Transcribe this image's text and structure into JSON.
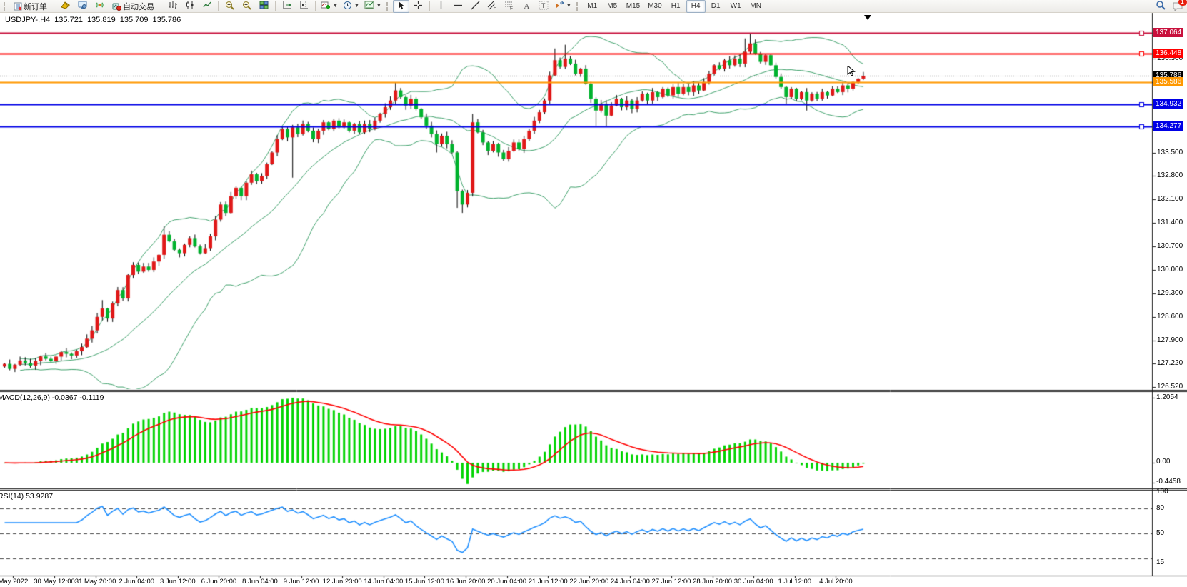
{
  "toolbar": {
    "new_order_label": "新订单",
    "autotrading_label": "自动交易",
    "timeframes": [
      "M1",
      "M5",
      "M15",
      "M30",
      "H1",
      "H4",
      "D1",
      "W1",
      "MN"
    ],
    "active_timeframe": "H4",
    "notification_count": "1"
  },
  "chart_header": {
    "symbol_period": "USDJPY-,H4",
    "open": "135.721",
    "high": "135.819",
    "low": "135.709",
    "close": "135.786"
  },
  "price_axis": {
    "ticks": [
      "137.000",
      "136.300",
      "135.600",
      "134.900",
      "134.200",
      "133.500",
      "132.800",
      "132.100",
      "131.400",
      "130.700",
      "130.000",
      "129.300",
      "128.600",
      "127.900",
      "127.220",
      "126.520"
    ],
    "levels": [
      {
        "text": "137.064",
        "value": 137.064,
        "color": "#c8103c",
        "marker": true,
        "kind": "line"
      },
      {
        "text": "136.448",
        "value": 136.448,
        "color": "#ff0000",
        "marker": true,
        "kind": "line"
      },
      {
        "text": "135.786",
        "value": 135.786,
        "color": "#000000",
        "marker": false,
        "kind": "bid"
      },
      {
        "text": "135.586",
        "value": 135.586,
        "color": "#ff9800",
        "marker": false,
        "kind": "line"
      },
      {
        "text": "134.932",
        "value": 134.932,
        "color": "#0000e6",
        "marker": true,
        "kind": "line"
      },
      {
        "text": "134.277",
        "value": 134.277,
        "color": "#0000e6",
        "marker": true,
        "kind": "line"
      }
    ]
  },
  "macd": {
    "label": "MACD(12,26,9) -0.0367 -0.1119",
    "axis_labels": [
      "1.2054",
      "0.00",
      "-0.4458"
    ]
  },
  "rsi": {
    "label": "RSI(14) 53.9287",
    "axis_labels": [
      "100",
      "80",
      "50",
      "15"
    ],
    "dashed_levels": [
      80,
      50,
      20
    ]
  },
  "time_axis": {
    "labels": [
      "May 2022",
      "30 May 12:00",
      "31 May 20:00",
      "2 Jun 04:00",
      "3 Jun 12:00",
      "6 Jun 20:00",
      "8 Jun 04:00",
      "9 Jun 12:00",
      "12 Jun 23:00",
      "14 Jun 04:00",
      "15 Jun 12:00",
      "16 Jun 20:00",
      "20 Jun 04:00",
      "21 Jun 12:00",
      "22 Jun 20:00",
      "24 Jun 04:00",
      "27 Jun 12:00",
      "28 Jun 20:00",
      "30 Jun 04:00",
      "1 Jul 12:00",
      "4 Jul 20:00"
    ]
  },
  "colors": {
    "bull_candle": "#e01818",
    "bear_candle": "#00b22d",
    "wick": "#000000",
    "bollinger": "#3fa26c",
    "macd_histogram": "#00d400",
    "macd_signal": "#ff0000",
    "rsi_line": "#1e8fff",
    "axis_line": "#000000"
  },
  "chart_data": {
    "type": "candlestick",
    "symbol": "USDJPY-",
    "timeframe": "H4",
    "bars": 168,
    "last_ohlc": {
      "open": 135.721,
      "high": 135.819,
      "low": 135.709,
      "close": 135.786
    },
    "indicators": [
      "Bollinger Bands",
      "MACD(12,26,9)",
      "RSI(14)"
    ],
    "bollinger": {
      "period": 20,
      "deviation": 2
    },
    "price_anchors": [
      [
        0,
        127.2
      ],
      [
        1,
        127.05
      ],
      [
        3,
        127.3
      ],
      [
        5,
        127.15
      ],
      [
        7,
        127.42
      ],
      [
        9,
        127.28
      ],
      [
        11,
        127.55
      ],
      [
        13,
        127.45
      ],
      [
        15,
        127.7
      ],
      [
        16,
        127.95
      ],
      [
        17,
        128.2
      ],
      [
        18,
        128.6
      ],
      [
        19,
        128.85
      ],
      [
        20,
        128.55
      ],
      [
        21,
        129.0
      ],
      [
        22,
        129.4
      ],
      [
        23,
        129.15
      ],
      [
        24,
        129.85
      ],
      [
        25,
        130.15
      ],
      [
        26,
        129.95
      ],
      [
        27,
        130.1
      ],
      [
        28,
        130.0
      ],
      [
        29,
        130.25
      ],
      [
        30,
        130.45
      ],
      [
        31,
        131.05
      ],
      [
        32,
        130.85
      ],
      [
        33,
        130.6
      ],
      [
        34,
        130.5
      ],
      [
        35,
        130.75
      ],
      [
        36,
        130.95
      ],
      [
        37,
        130.7
      ],
      [
        38,
        130.5
      ],
      [
        39,
        130.65
      ],
      [
        40,
        131.0
      ],
      [
        41,
        131.5
      ],
      [
        42,
        131.95
      ],
      [
        43,
        131.7
      ],
      [
        44,
        132.2
      ],
      [
        45,
        132.45
      ],
      [
        46,
        132.2
      ],
      [
        47,
        132.6
      ],
      [
        48,
        132.85
      ],
      [
        49,
        132.65
      ],
      [
        50,
        132.8
      ],
      [
        51,
        133.15
      ],
      [
        52,
        133.5
      ],
      [
        53,
        133.9
      ],
      [
        54,
        134.2
      ],
      [
        55,
        133.95
      ],
      [
        56,
        134.25
      ],
      [
        57,
        134.05
      ],
      [
        58,
        134.35
      ],
      [
        59,
        134.15
      ],
      [
        60,
        133.9
      ],
      [
        61,
        134.15
      ],
      [
        62,
        134.4
      ],
      [
        63,
        134.2
      ],
      [
        64,
        134.45
      ],
      [
        65,
        134.25
      ],
      [
        66,
        134.4
      ],
      [
        67,
        134.15
      ],
      [
        68,
        134.35
      ],
      [
        69,
        134.1
      ],
      [
        70,
        134.35
      ],
      [
        71,
        134.2
      ],
      [
        72,
        134.45
      ],
      [
        73,
        134.65
      ],
      [
        74,
        134.85
      ],
      [
        75,
        135.05
      ],
      [
        76,
        135.35
      ],
      [
        77,
        135.15
      ],
      [
        78,
        134.9
      ],
      [
        79,
        135.1
      ],
      [
        80,
        134.8
      ],
      [
        81,
        134.55
      ],
      [
        82,
        134.3
      ],
      [
        83,
        134.05
      ],
      [
        84,
        133.75
      ],
      [
        85,
        134.0
      ],
      [
        86,
        133.75
      ],
      [
        87,
        133.5
      ],
      [
        88,
        132.35
      ],
      [
        89,
        131.95
      ],
      [
        90,
        132.3
      ],
      [
        91,
        134.4
      ],
      [
        92,
        134.1
      ],
      [
        93,
        133.8
      ],
      [
        94,
        133.55
      ],
      [
        95,
        133.75
      ],
      [
        96,
        133.5
      ],
      [
        97,
        133.3
      ],
      [
        98,
        133.55
      ],
      [
        99,
        133.8
      ],
      [
        100,
        133.6
      ],
      [
        101,
        133.9
      ],
      [
        102,
        134.15
      ],
      [
        103,
        134.45
      ],
      [
        104,
        134.7
      ],
      [
        105,
        135.05
      ],
      [
        106,
        135.8
      ],
      [
        107,
        136.25
      ],
      [
        108,
        136.05
      ],
      [
        109,
        136.3
      ],
      [
        110,
        136.15
      ],
      [
        111,
        135.85
      ],
      [
        112,
        136.0
      ],
      [
        113,
        135.55
      ],
      [
        114,
        135.1
      ],
      [
        115,
        134.75
      ],
      [
        116,
        134.95
      ],
      [
        117,
        134.6
      ],
      [
        118,
        134.9
      ],
      [
        119,
        135.1
      ],
      [
        120,
        134.85
      ],
      [
        121,
        135.05
      ],
      [
        122,
        134.8
      ],
      [
        123,
        135.05
      ],
      [
        124,
        135.25
      ],
      [
        125,
        135.05
      ],
      [
        126,
        135.3
      ],
      [
        127,
        135.15
      ],
      [
        128,
        135.4
      ],
      [
        129,
        135.2
      ],
      [
        130,
        135.45
      ],
      [
        131,
        135.25
      ],
      [
        132,
        135.45
      ],
      [
        133,
        135.3
      ],
      [
        134,
        135.5
      ],
      [
        135,
        135.35
      ],
      [
        136,
        135.6
      ],
      [
        137,
        135.85
      ],
      [
        138,
        136.1
      ],
      [
        139,
        136.0
      ],
      [
        140,
        136.25
      ],
      [
        141,
        136.1
      ],
      [
        142,
        136.3
      ],
      [
        143,
        136.15
      ],
      [
        144,
        136.5
      ],
      [
        145,
        136.75
      ],
      [
        146,
        136.45
      ],
      [
        147,
        136.2
      ],
      [
        148,
        136.4
      ],
      [
        149,
        136.1
      ],
      [
        150,
        135.75
      ],
      [
        151,
        135.45
      ],
      [
        152,
        135.15
      ],
      [
        153,
        135.4
      ],
      [
        154,
        135.1
      ],
      [
        155,
        135.3
      ],
      [
        156,
        135.05
      ],
      [
        157,
        135.25
      ],
      [
        158,
        135.1
      ],
      [
        159,
        135.3
      ],
      [
        160,
        135.2
      ],
      [
        161,
        135.4
      ],
      [
        162,
        135.3
      ],
      [
        163,
        135.5
      ],
      [
        164,
        135.4
      ],
      [
        165,
        135.6
      ],
      [
        166,
        135.7
      ],
      [
        167,
        135.786
      ]
    ],
    "wick_events": [
      {
        "bar": 19,
        "high": 129.1
      },
      {
        "bar": 31,
        "high": 131.3
      },
      {
        "bar": 56,
        "low": 132.75
      },
      {
        "bar": 76,
        "high": 135.58
      },
      {
        "bar": 84,
        "low": 133.5
      },
      {
        "bar": 88,
        "low": 131.85
      },
      {
        "bar": 89,
        "low": 131.7
      },
      {
        "bar": 91,
        "high": 134.65
      },
      {
        "bar": 107,
        "high": 136.6
      },
      {
        "bar": 109,
        "high": 136.71
      },
      {
        "bar": 115,
        "low": 134.3
      },
      {
        "bar": 117,
        "low": 134.27
      },
      {
        "bar": 144,
        "high": 136.9
      },
      {
        "bar": 145,
        "high": 137.06
      },
      {
        "bar": 152,
        "low": 134.95
      },
      {
        "bar": 156,
        "low": 134.75
      }
    ],
    "horizontal_object_lines": [
      137.064,
      136.448,
      135.586,
      134.932,
      134.277
    ]
  }
}
